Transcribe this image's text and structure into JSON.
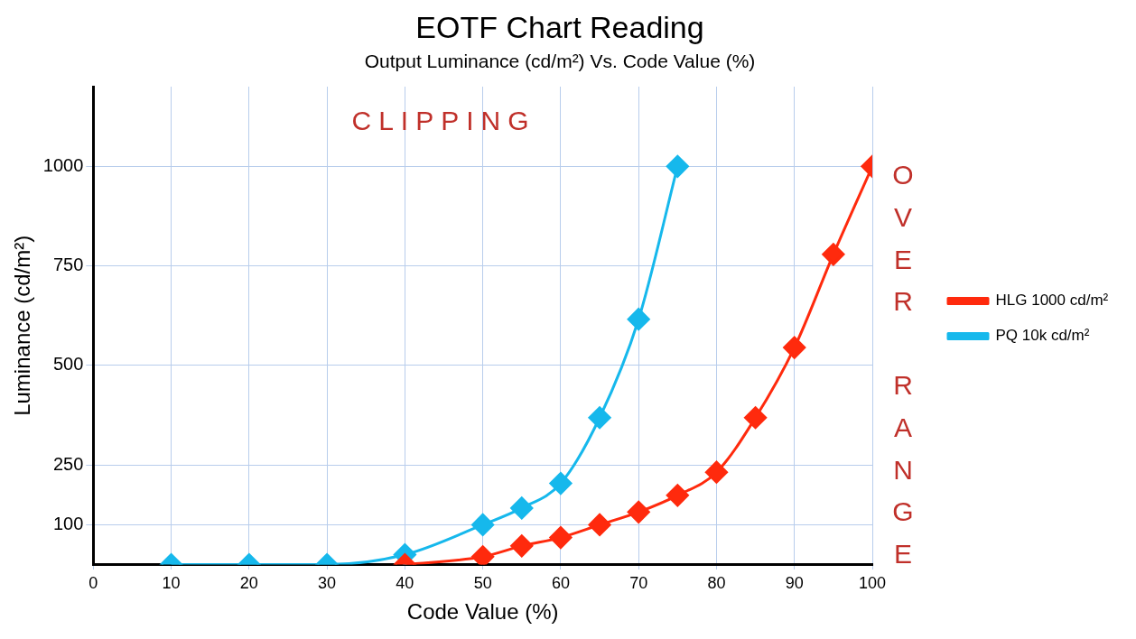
{
  "chart_data": {
    "type": "line",
    "title": "EOTF Chart Reading",
    "subtitle": "Output Luminance (cd/m²) Vs. Code Value (%)",
    "xlabel": "Code Value (%)",
    "ylabel": "Luminance (cd/m²)",
    "xlim": [
      0,
      100
    ],
    "xticks": [
      0,
      10,
      20,
      30,
      40,
      50,
      60,
      70,
      80,
      90,
      100
    ],
    "ylim": [
      0,
      1200
    ],
    "yticks": [
      100,
      250,
      500,
      750,
      1000
    ],
    "series": [
      {
        "name": "HLG 1000 cd/m²",
        "color": "#ff2a0d",
        "x": [
          40,
          50,
          55,
          60,
          65,
          70,
          75,
          80,
          85,
          90,
          95,
          100
        ],
        "values": [
          0,
          20,
          47,
          68,
          100,
          132,
          174,
          232,
          369,
          545,
          779,
          1000
        ]
      },
      {
        "name": "PQ 10k cd/m²",
        "color": "#16b8ec",
        "x": [
          10,
          20,
          30,
          40,
          50,
          55,
          60,
          65,
          70,
          75
        ],
        "values": [
          0,
          0,
          0,
          25,
          100,
          142,
          204,
          369,
          616,
          1000
        ]
      }
    ],
    "marker": "diamond",
    "line_style": "solid",
    "grid": true,
    "legend": "right",
    "annotations": [
      "CLIPPING",
      "OVER RANGE"
    ]
  }
}
